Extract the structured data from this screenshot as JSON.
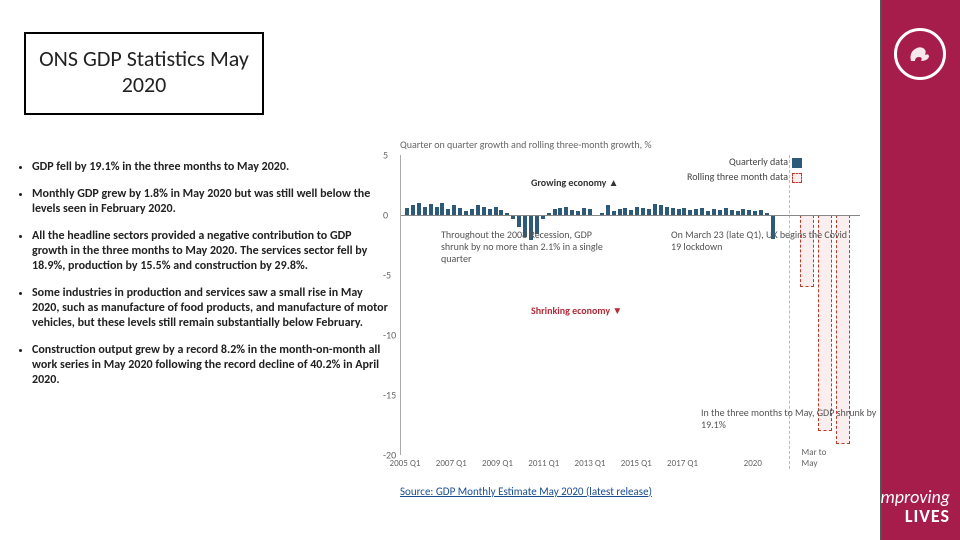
{
  "brand": {
    "line1": "Improving",
    "line2": "LIVES"
  },
  "title": "ONS GDP Statistics May 2020",
  "bullets": [
    "GDP fell by 19.1% in the three months to May 2020.",
    "Monthly GDP grew by 1.8% in May 2020 but was still well below the levels seen in February 2020.",
    "All the headline sectors provided a negative contribution to GDP growth in the three months to May 2020. The services sector fell by 18.9%, production by 15.5% and construction by 29.8%.",
    "Some industries in production and services saw a small rise in May 2020, such as manufacture of food products, and manufacture of motor vehicles, but these levels still remain substantially below February.",
    "Construction output grew by a record 8.2% in the month-on-month all work series in May 2020 following the record decline of 40.2% in April 2020."
  ],
  "chart": {
    "title": "Quarter on quarter growth and rolling three-month growth, %",
    "ylim": [
      -20,
      5
    ],
    "yticks": [
      5,
      0,
      -5,
      -10,
      -15,
      -20
    ],
    "quarterly_color": "#2e5a7a",
    "rolling_color": "#c0392b",
    "background_color": "#ffffff",
    "xticks": [
      "2005 Q1",
      "2007 Q1",
      "2009 Q1",
      "2011 Q1",
      "2013 Q1",
      "2015 Q1",
      "2017 Q1",
      "2020",
      "Mar to May"
    ],
    "quarterly_values": [
      0.6,
      0.8,
      1.0,
      0.7,
      0.9,
      0.7,
      1.0,
      0.5,
      0.8,
      0.6,
      0.3,
      0.5,
      0.8,
      0.7,
      0.5,
      0.7,
      0.4,
      0.2,
      -0.3,
      -1.0,
      -1.8,
      -2.1,
      -1.6,
      -0.3,
      0.2,
      0.5,
      0.6,
      0.7,
      0.4,
      0.3,
      0.6,
      0.5,
      -0.1,
      0.2,
      0.8,
      0.3,
      0.5,
      0.6,
      0.4,
      0.7,
      0.6,
      0.5,
      0.9,
      0.8,
      0.7,
      0.6,
      0.5,
      0.6,
      0.4,
      0.5,
      0.6,
      0.3,
      0.5,
      0.4,
      0.6,
      0.4,
      0.3,
      0.5,
      0.4,
      0.3,
      0.4,
      0.2,
      -2.0
    ],
    "rolling_values": [
      -6.0,
      -18.0,
      -19.1
    ],
    "annotations": {
      "growing": "Growing economy ▲",
      "shrinking": "Shrinking economy ▼",
      "recession": "Throughout the 2008 Recession, GDP shrunk by no more than 2.1% in a single quarter",
      "covid": "On March 23 (late Q1), UK begins the Covid 19 lockdown",
      "may": "In the three months to May, GDP shrunk by 19.1%"
    },
    "legend": {
      "quarterly": "Quarterly data",
      "rolling": "Rolling three month data"
    }
  },
  "source": "Source: GDP Monthly Estimate May 2020 (latest release)"
}
